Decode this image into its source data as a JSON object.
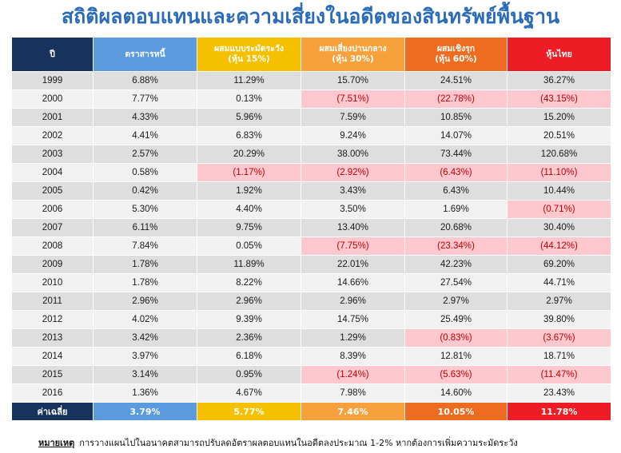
{
  "title": "สถิติผลตอบแทนและความเสี่ยงในอดีตของสินทรัพย์พื้นฐาน",
  "headers": [
    [
      "ปี"
    ],
    [
      "ตราสารหนี้"
    ],
    [
      "ผสมแบบระมัดระวัง",
      "(หุ้น 15%)"
    ],
    [
      "ผสมเสี่ยงปานกลาง",
      "(หุ้น 30%)"
    ],
    [
      "ผสมเชิงรุก",
      "(หุ้น 60%)"
    ],
    [
      "หุ้นไทย"
    ]
  ],
  "colors": {
    "year": "#17325c",
    "bond": "#5a9be0",
    "conservative": "#f5c000",
    "moderate": "#f6a13b",
    "aggressive": "#ee6c1f",
    "thai_equity": "#ee1c24",
    "negative_fill": "#ffc7ce",
    "negative_text": "#c00000"
  },
  "rows": [
    [
      "1999",
      "6.88%",
      "11.29%",
      "15.70%",
      "24.51%",
      "36.27%"
    ],
    [
      "2000",
      "7.77%",
      "0.13%",
      "(7.51%)",
      "(22.78%)",
      "(43.15%)"
    ],
    [
      "2001",
      "4.33%",
      "5.96%",
      "7.59%",
      "10.85%",
      "15.20%"
    ],
    [
      "2002",
      "4.41%",
      "6.83%",
      "9.24%",
      "14.07%",
      "20.51%"
    ],
    [
      "2003",
      "2.57%",
      "20.29%",
      "38.00%",
      "73.44%",
      "120.68%"
    ],
    [
      "2004",
      "0.58%",
      "(1.17%)",
      "(2.92%)",
      "(6.43%)",
      "(11.10%)"
    ],
    [
      "2005",
      "0.42%",
      "1.92%",
      "3.43%",
      "6.43%",
      "10.44%"
    ],
    [
      "2006",
      "5.30%",
      "4.40%",
      "3.50%",
      "1.69%",
      "(0.71%)"
    ],
    [
      "2007",
      "6.11%",
      "9.75%",
      "13.40%",
      "20.68%",
      "30.40%"
    ],
    [
      "2008",
      "7.84%",
      "0.05%",
      "(7.75%)",
      "(23.34%)",
      "(44.12%)"
    ],
    [
      "2009",
      "1.78%",
      "11.89%",
      "22.01%",
      "42.23%",
      "69.20%"
    ],
    [
      "2010",
      "1.78%",
      "8.22%",
      "14.66%",
      "27.54%",
      "44.71%"
    ],
    [
      "2011",
      "2.96%",
      "2.96%",
      "2.96%",
      "2.97%",
      "2.97%"
    ],
    [
      "2012",
      "4.02%",
      "9.39%",
      "14.75%",
      "25.49%",
      "39.80%"
    ],
    [
      "2013",
      "3.42%",
      "2.36%",
      "1.29%",
      "(0.83%)",
      "(3.67%)"
    ],
    [
      "2014",
      "3.97%",
      "6.18%",
      "8.39%",
      "12.81%",
      "18.71%"
    ],
    [
      "2015",
      "3.14%",
      "0.95%",
      "(1.24%)",
      "(5.63%)",
      "(11.47%)"
    ],
    [
      "2016",
      "1.36%",
      "4.67%",
      "7.98%",
      "14.60%",
      "23.43%"
    ]
  ],
  "average": [
    "ค่าเฉลี่ย",
    "3.79%",
    "5.77%",
    "7.46%",
    "10.05%",
    "11.78%"
  ],
  "note": {
    "label": "หมายเหตุ",
    "text": "การวางแผนไปในอนาคตสามารถปรับลดอัตราผลตอบแทนในอดีตลงประมาณ 1-2% หากต้องการเพิ่มความระมัดระวัง"
  }
}
